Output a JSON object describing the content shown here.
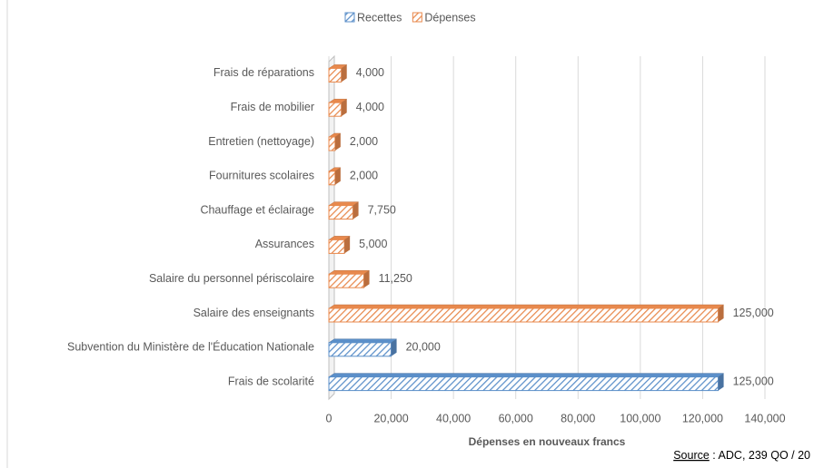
{
  "chart_data": {
    "type": "bar",
    "orientation": "horizontal",
    "categories": [
      "Frais de réparations",
      "Frais de mobilier",
      "Entretien (nettoyage)",
      "Fournitures scolaires",
      "Chauffage et éclairage",
      "Assurances",
      "Salaire du personnel périscolaire",
      "Salaire des enseignants",
      "Subvention du Ministère de l'Éducation Nationale",
      "Frais de scolarité"
    ],
    "series": [
      {
        "name": "Recettes",
        "color": "#5b8fc9",
        "values": [
          null,
          null,
          null,
          null,
          null,
          null,
          null,
          null,
          20000,
          125000
        ],
        "value_labels": [
          null,
          null,
          null,
          null,
          null,
          null,
          null,
          null,
          "20,000",
          "125,000"
        ]
      },
      {
        "name": "Dépenses",
        "color": "#e8894d",
        "values": [
          4000,
          4000,
          2000,
          2000,
          7750,
          5000,
          11250,
          125000,
          null,
          null
        ],
        "value_labels": [
          "4,000",
          "4,000",
          "2,000",
          "2,000",
          "7,750",
          "5,000",
          "11,250",
          "125,000",
          null,
          null
        ]
      }
    ],
    "xlabel": "Dépenses en nouveaux francs",
    "xlim": [
      0,
      140000
    ],
    "xticks": [
      0,
      {
        "value": 20000,
        "label": "20,000"
      },
      {
        "value": 40000,
        "label": "40,000"
      },
      {
        "value": 60000,
        "label": "60,000"
      },
      {
        "value": 80000,
        "label": "80,000"
      },
      {
        "value": 100000,
        "label": "100,000"
      },
      {
        "value": 120000,
        "label": "120,000"
      },
      {
        "value": 140000,
        "label": "140,000"
      }
    ],
    "grid": true,
    "legend": "top",
    "source_label": "Source",
    "source_text": " : ADC, 239 QO / 20"
  }
}
